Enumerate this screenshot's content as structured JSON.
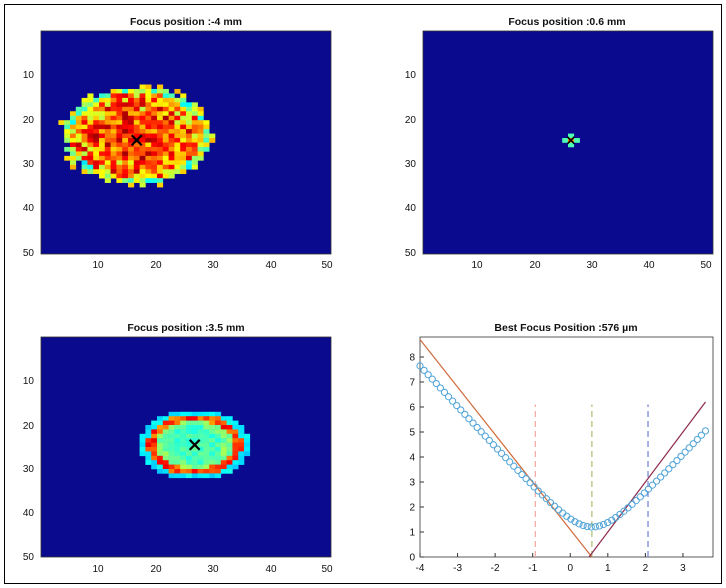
{
  "chart_data": [
    {
      "type": "heatmap",
      "title": "Focus position :-4 mm",
      "xticks": [
        "10",
        "20",
        "30",
        "40",
        "50"
      ],
      "yticks": [
        "10",
        "20",
        "30",
        "40",
        "50"
      ],
      "xlim": [
        0.5,
        50.5
      ],
      "ylim": [
        0.5,
        50.5
      ],
      "grid_size": [
        50,
        50
      ],
      "colormap": "jet",
      "background_color": "#0a0a8f",
      "marker": {
        "symbol": "x",
        "x": 17,
        "y": 25
      },
      "spot": {
        "cx": 17,
        "cy": 24,
        "rx": 13,
        "ry": 11,
        "shape": "speckled-ring",
        "peak_level": 0.9
      }
    },
    {
      "type": "heatmap",
      "title": "Focus position :0.6 mm",
      "xticks": [
        "10",
        "20",
        "30",
        "40",
        "50"
      ],
      "yticks": [
        "10",
        "20",
        "30",
        "40",
        "50"
      ],
      "xlim": [
        0.5,
        50.5
      ],
      "ylim": [
        0.5,
        50.5
      ],
      "grid_size": [
        50,
        50
      ],
      "colormap": "jet",
      "background_color": "#0a0a8f",
      "marker": {
        "symbol": "x",
        "x": 26,
        "y": 25
      },
      "spot": {
        "cx": 26,
        "cy": 25,
        "rx": 1.2,
        "ry": 1.2,
        "shape": "point",
        "peak_level": 0.75
      }
    },
    {
      "type": "heatmap",
      "title": "Focus position :3.5 mm",
      "xticks": [
        "10",
        "20",
        "30",
        "40",
        "50"
      ],
      "yticks": [
        "10",
        "20",
        "30",
        "40",
        "50"
      ],
      "xlim": [
        0.5,
        50.5
      ],
      "ylim": [
        0.5,
        50.5
      ],
      "grid_size": [
        50,
        50
      ],
      "colormap": "jet",
      "background_color": "#0a0a8f",
      "marker": {
        "symbol": "x",
        "x": 27,
        "y": 25
      },
      "spot": {
        "cx": 27,
        "cy": 25,
        "rx": 9,
        "ry": 7.5,
        "shape": "ring",
        "peak_level": 0.88
      }
    },
    {
      "type": "line",
      "title": "Best Focus Position :576 µm",
      "xlim": [
        -4,
        3.8
      ],
      "ylim": [
        0,
        8.8
      ],
      "xticks": [
        "-4",
        "-3",
        "-2",
        "-1",
        "0",
        "1",
        "2",
        "3"
      ],
      "yticks": [
        "0",
        "1",
        "2",
        "3",
        "4",
        "5",
        "6",
        "7",
        "8"
      ],
      "series": [
        {
          "kind": "markers",
          "marker": "o",
          "color": "#4fa3d8",
          "x_range": [
            -4,
            3.6
          ],
          "count": 71,
          "model": {
            "waist_x": 0.576,
            "waist_y": 1.2,
            "slope_left": 1.65,
            "slope_right": 1.62
          }
        },
        {
          "kind": "line",
          "color": "#d06a3a",
          "x": [
            -4,
            0.576
          ],
          "y": [
            8.7,
            0
          ]
        },
        {
          "kind": "line",
          "color": "#8b2a4a",
          "x": [
            0.5,
            3.6
          ],
          "y": [
            0,
            6.2
          ]
        }
      ],
      "vlines": [
        {
          "x": -0.93,
          "y_top": 6.1,
          "color": "#f4a6a0",
          "style": "dashed"
        },
        {
          "x": 0.576,
          "y_top": 6.1,
          "color": "#a8c070",
          "style": "dashed"
        },
        {
          "x": 2.07,
          "y_top": 6.1,
          "color": "#6f7fd8",
          "style": "dashed"
        }
      ]
    }
  ]
}
